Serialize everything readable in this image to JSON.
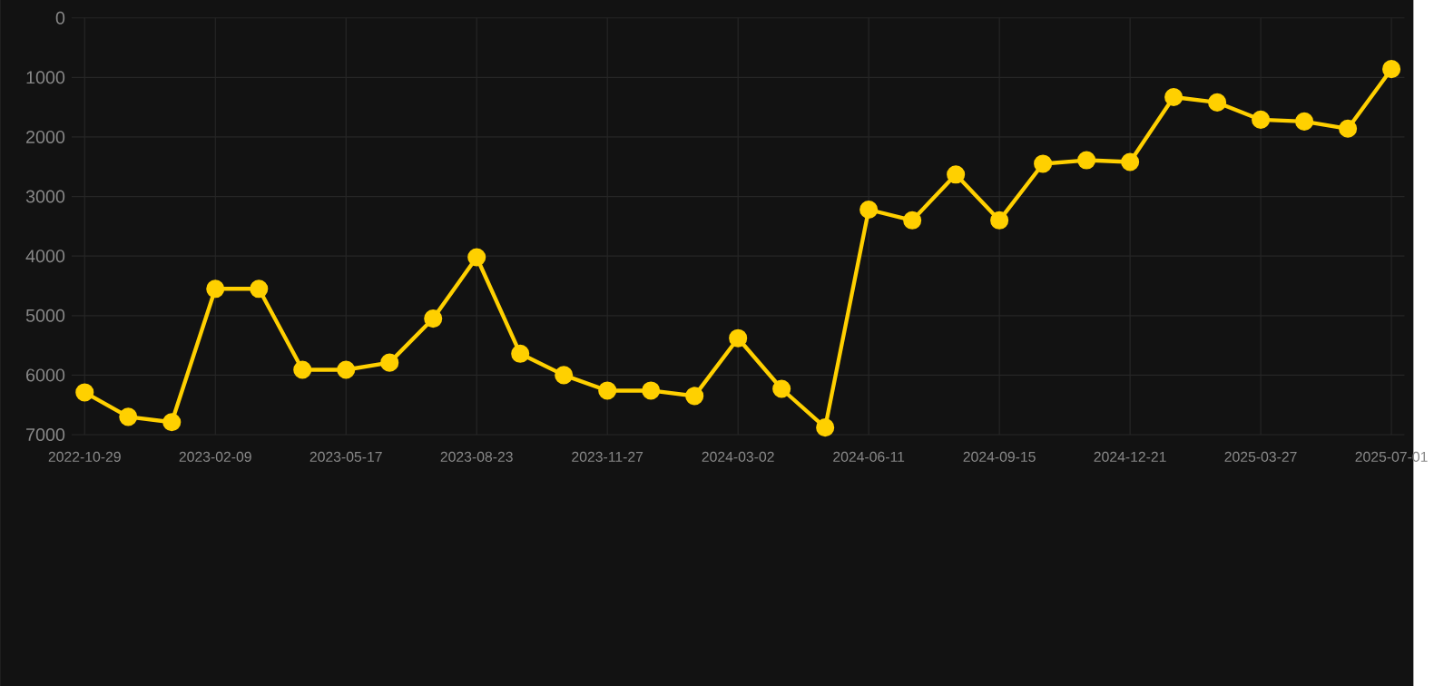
{
  "chart_data": {
    "type": "line",
    "categories": [
      "2022-10-29",
      null,
      null,
      "2023-02-09",
      null,
      null,
      "2023-05-17",
      null,
      null,
      "2023-08-23",
      null,
      null,
      "2023-11-27",
      null,
      null,
      "2024-03-02",
      null,
      null,
      "2024-06-11",
      null,
      null,
      "2024-09-15",
      null,
      null,
      "2024-12-21",
      null,
      null,
      "2025-03-27",
      null,
      null,
      "2025-07-01"
    ],
    "series": [
      {
        "color": "#ffd000",
        "values": [
          6290,
          6700,
          6790,
          4550,
          4550,
          5910,
          5910,
          5790,
          5050,
          4020,
          5640,
          6000,
          6260,
          6260,
          6350,
          5380,
          6230,
          6880,
          3220,
          3400,
          2630,
          3400,
          2450,
          2390,
          2420,
          1330,
          1420,
          1710,
          1740,
          1860,
          860
        ]
      }
    ],
    "ylim": [
      7000,
      0
    ],
    "yticks": [
      0,
      1000,
      2000,
      3000,
      4000,
      5000,
      6000,
      7000
    ],
    "grid": true,
    "marker": "circle",
    "line_style": "solid"
  }
}
